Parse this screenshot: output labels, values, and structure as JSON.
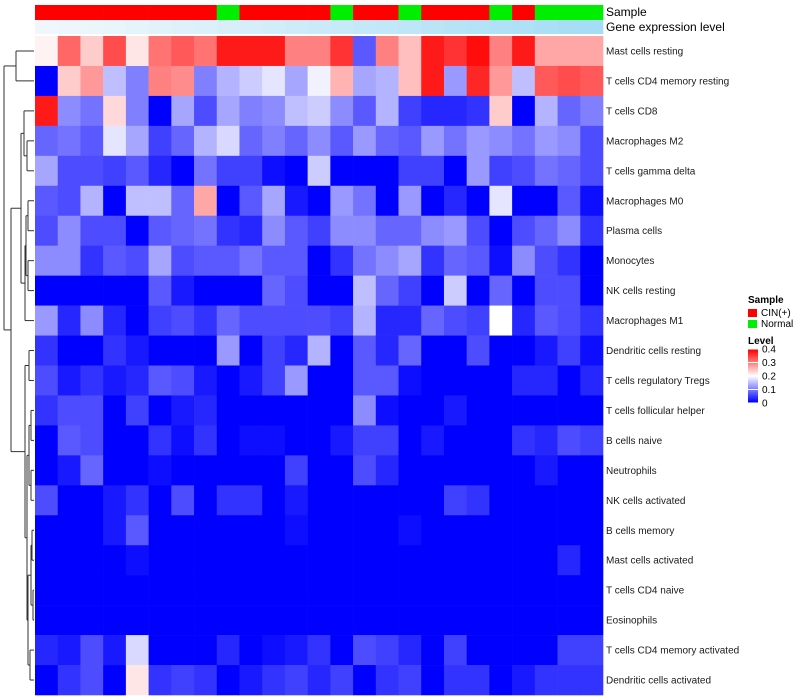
{
  "chart_data": {
    "type": "heatmap",
    "title": "",
    "annotation_labels": {
      "sample": "Sample",
      "expression": "Gene expression level"
    },
    "row_labels": [
      "Mast cells resting",
      "T cells CD4 memory resting",
      "T cells CD8",
      "Macrophages M2",
      "T cells gamma delta",
      "Macrophages M0",
      "Plasma cells",
      "Monocytes",
      "NK cells resting",
      "Macrophages M1",
      "Dendritic cells resting",
      "T cells regulatory  Tregs",
      "T cells follicular helper",
      "B cells naive",
      "Neutrophils",
      "NK cells activated",
      "B cells memory",
      "Mast cells activated",
      "T cells CD4 naive",
      "Eosinophils",
      "T cells CD4 memory activated",
      "Dendritic cells activated"
    ],
    "sample_groups": [
      "CIN(+)",
      "CIN(+)",
      "CIN(+)",
      "CIN(+)",
      "CIN(+)",
      "CIN(+)",
      "CIN(+)",
      "CIN(+)",
      "Normal",
      "CIN(+)",
      "CIN(+)",
      "CIN(+)",
      "CIN(+)",
      "Normal",
      "CIN(+)",
      "CIN(+)",
      "Normal",
      "CIN(+)",
      "CIN(+)",
      "CIN(+)",
      "Normal",
      "CIN(+)",
      "Normal",
      "Normal",
      "Normal"
    ],
    "expression_level": [
      0.98,
      0.97,
      0.96,
      0.94,
      0.92,
      0.9,
      0.88,
      0.86,
      0.84,
      0.82,
      0.8,
      0.78,
      0.76,
      0.74,
      0.72,
      0.7,
      0.68,
      0.66,
      0.64,
      0.62,
      0.6,
      0.58,
      0.56,
      0.54,
      0.52
    ],
    "values": [
      [
        0.21,
        0.32,
        0.24,
        0.34,
        0.22,
        0.31,
        0.33,
        0.31,
        0.38,
        0.38,
        0.38,
        0.3,
        0.3,
        0.36,
        0.07,
        0.3,
        0.25,
        0.38,
        0.36,
        0.39,
        0.3,
        0.38,
        0.27,
        0.27,
        0.27
      ],
      [
        0.0,
        0.24,
        0.28,
        0.15,
        0.1,
        0.3,
        0.29,
        0.1,
        0.14,
        0.16,
        0.18,
        0.13,
        0.19,
        0.26,
        0.13,
        0.14,
        0.25,
        0.38,
        0.12,
        0.37,
        0.28,
        0.15,
        0.33,
        0.34,
        0.33
      ],
      [
        0.38,
        0.11,
        0.09,
        0.23,
        0.1,
        0.0,
        0.13,
        0.06,
        0.13,
        0.1,
        0.11,
        0.15,
        0.16,
        0.11,
        0.07,
        0.14,
        0.05,
        0.03,
        0.03,
        0.04,
        0.24,
        0.0,
        0.14,
        0.08,
        0.1
      ],
      [
        0.08,
        0.09,
        0.07,
        0.18,
        0.13,
        0.05,
        0.08,
        0.14,
        0.17,
        0.08,
        0.1,
        0.08,
        0.11,
        0.07,
        0.12,
        0.08,
        0.07,
        0.12,
        0.09,
        0.12,
        0.11,
        0.09,
        0.12,
        0.11,
        0.06
      ],
      [
        0.13,
        0.06,
        0.06,
        0.05,
        0.07,
        0.03,
        0.0,
        0.09,
        0.05,
        0.05,
        0.01,
        0.0,
        0.16,
        0.0,
        0.0,
        0.0,
        0.05,
        0.05,
        0.0,
        0.12,
        0.05,
        0.06,
        0.09,
        0.08,
        0.06
      ],
      [
        0.07,
        0.06,
        0.14,
        0.0,
        0.15,
        0.15,
        0.08,
        0.27,
        0.0,
        0.07,
        0.13,
        0.02,
        0.0,
        0.12,
        0.09,
        0.0,
        0.12,
        0.0,
        0.03,
        0.0,
        0.18,
        0.0,
        0.0,
        0.07,
        0.01
      ],
      [
        0.06,
        0.11,
        0.06,
        0.06,
        0.0,
        0.07,
        0.08,
        0.09,
        0.04,
        0.03,
        0.11,
        0.07,
        0.05,
        0.11,
        0.11,
        0.08,
        0.08,
        0.11,
        0.12,
        0.06,
        0.0,
        0.06,
        0.08,
        0.11,
        0.04
      ],
      [
        0.11,
        0.11,
        0.04,
        0.07,
        0.06,
        0.13,
        0.06,
        0.07,
        0.07,
        0.09,
        0.07,
        0.07,
        0.0,
        0.04,
        0.09,
        0.11,
        0.13,
        0.04,
        0.08,
        0.07,
        0.01,
        0.11,
        0.06,
        0.04,
        0.0
      ],
      [
        0.0,
        0.0,
        0.0,
        0.0,
        0.0,
        0.07,
        0.02,
        0.0,
        0.0,
        0.0,
        0.08,
        0.06,
        0.0,
        0.0,
        0.15,
        0.08,
        0.05,
        0.0,
        0.16,
        0.0,
        0.08,
        0.0,
        0.06,
        0.06,
        0.0
      ],
      [
        0.12,
        0.03,
        0.11,
        0.03,
        0.0,
        0.05,
        0.06,
        0.04,
        0.08,
        0.06,
        0.06,
        0.06,
        0.06,
        0.05,
        0.14,
        0.03,
        0.03,
        0.08,
        0.06,
        0.05,
        0.2,
        0.03,
        0.07,
        0.06,
        0.04
      ],
      [
        0.04,
        0.0,
        0.0,
        0.04,
        0.02,
        0.0,
        0.0,
        0.0,
        0.12,
        0.0,
        0.05,
        0.03,
        0.14,
        0.0,
        0.07,
        0.03,
        0.08,
        0.0,
        0.0,
        0.06,
        0.0,
        0.0,
        0.02,
        0.05,
        0.01
      ],
      [
        0.06,
        0.02,
        0.04,
        0.02,
        0.03,
        0.07,
        0.06,
        0.02,
        0.0,
        0.02,
        0.05,
        0.12,
        0.0,
        0.0,
        0.07,
        0.07,
        0.01,
        0.0,
        0.0,
        0.0,
        0.0,
        0.03,
        0.03,
        0.0,
        0.03
      ],
      [
        0.04,
        0.06,
        0.06,
        0.0,
        0.05,
        0.0,
        0.02,
        0.03,
        0.0,
        0.0,
        0.0,
        0.0,
        0.0,
        0.0,
        0.11,
        0.01,
        0.0,
        0.0,
        0.02,
        0.0,
        0.0,
        0.0,
        0.0,
        0.0,
        0.0
      ],
      [
        0.0,
        0.07,
        0.06,
        0.0,
        0.0,
        0.04,
        0.01,
        0.04,
        0.0,
        0.01,
        0.01,
        0.0,
        0.0,
        0.02,
        0.05,
        0.05,
        0.0,
        0.02,
        0.0,
        0.0,
        0.0,
        0.04,
        0.03,
        0.06,
        0.05
      ],
      [
        0.0,
        0.02,
        0.08,
        0.0,
        0.0,
        0.01,
        0.0,
        0.0,
        0.0,
        0.0,
        0.0,
        0.05,
        0.0,
        0.0,
        0.06,
        0.03,
        0.0,
        0.0,
        0.0,
        0.0,
        0.0,
        0.0,
        0.02,
        0.0,
        0.0
      ],
      [
        0.06,
        0.0,
        0.0,
        0.02,
        0.04,
        0.0,
        0.06,
        0.0,
        0.04,
        0.04,
        0.0,
        0.02,
        0.0,
        0.0,
        0.0,
        0.0,
        0.0,
        0.0,
        0.05,
        0.04,
        0.0,
        0.0,
        0.0,
        0.0,
        0.0
      ],
      [
        0.0,
        0.0,
        0.0,
        0.02,
        0.07,
        0.0,
        0.0,
        0.0,
        0.0,
        0.0,
        0.0,
        0.01,
        0.0,
        0.0,
        0.0,
        0.0,
        0.01,
        0.0,
        0.0,
        0.0,
        0.0,
        0.0,
        0.0,
        0.0,
        0.0
      ],
      [
        0.0,
        0.0,
        0.0,
        0.0,
        0.01,
        0.0,
        0.0,
        0.0,
        0.0,
        0.0,
        0.0,
        0.0,
        0.0,
        0.0,
        0.0,
        0.0,
        0.0,
        0.0,
        0.0,
        0.0,
        0.0,
        0.0,
        0.0,
        0.03,
        0.0
      ],
      [
        0.0,
        0.0,
        0.0,
        0.0,
        0.0,
        0.0,
        0.0,
        0.0,
        0.0,
        0.0,
        0.0,
        0.0,
        0.0,
        0.0,
        0.0,
        0.0,
        0.0,
        0.0,
        0.0,
        0.0,
        0.0,
        0.0,
        0.0,
        0.0,
        0.0
      ],
      [
        0.0,
        0.0,
        0.0,
        0.0,
        0.0,
        0.0,
        0.0,
        0.0,
        0.0,
        0.0,
        0.0,
        0.0,
        0.0,
        0.0,
        0.0,
        0.0,
        0.0,
        0.0,
        0.0,
        0.0,
        0.0,
        0.0,
        0.0,
        0.0,
        0.0
      ],
      [
        0.03,
        0.02,
        0.06,
        0.02,
        0.17,
        0.0,
        0.0,
        0.0,
        0.03,
        0.0,
        0.01,
        0.02,
        0.04,
        0.0,
        0.06,
        0.05,
        0.03,
        0.0,
        0.05,
        0.0,
        0.0,
        0.0,
        0.0,
        0.05,
        0.05
      ],
      [
        0.0,
        0.04,
        0.06,
        0.0,
        0.22,
        0.04,
        0.05,
        0.04,
        0.0,
        0.02,
        0.04,
        0.05,
        0.03,
        0.05,
        0.0,
        0.04,
        0.05,
        0.0,
        0.04,
        0.04,
        0.0,
        0.02,
        0.04,
        0.04,
        0.04
      ]
    ],
    "legend_sample": {
      "title": "Sample",
      "entries": [
        "CIN(+)",
        "Normal"
      ],
      "colors": [
        "#ff0000",
        "#00ee00"
      ]
    },
    "legend_level": {
      "title": "Level",
      "ticks": [
        0.4,
        0.3,
        0.2,
        0.1,
        0
      ],
      "tick_labels": [
        "0.4",
        "0.3",
        "0.2",
        "0.1",
        "0"
      ],
      "range": [
        0,
        0.4
      ]
    },
    "color_scale": {
      "low": "#0000ff",
      "mid": "#ffffff",
      "high": "#ff0000",
      "mid_value": 0.2
    },
    "expression_colors": {
      "low": "#4fbfee",
      "high": "#f2f8fc"
    },
    "row_dendrogram": true,
    "legend_position": "right"
  }
}
